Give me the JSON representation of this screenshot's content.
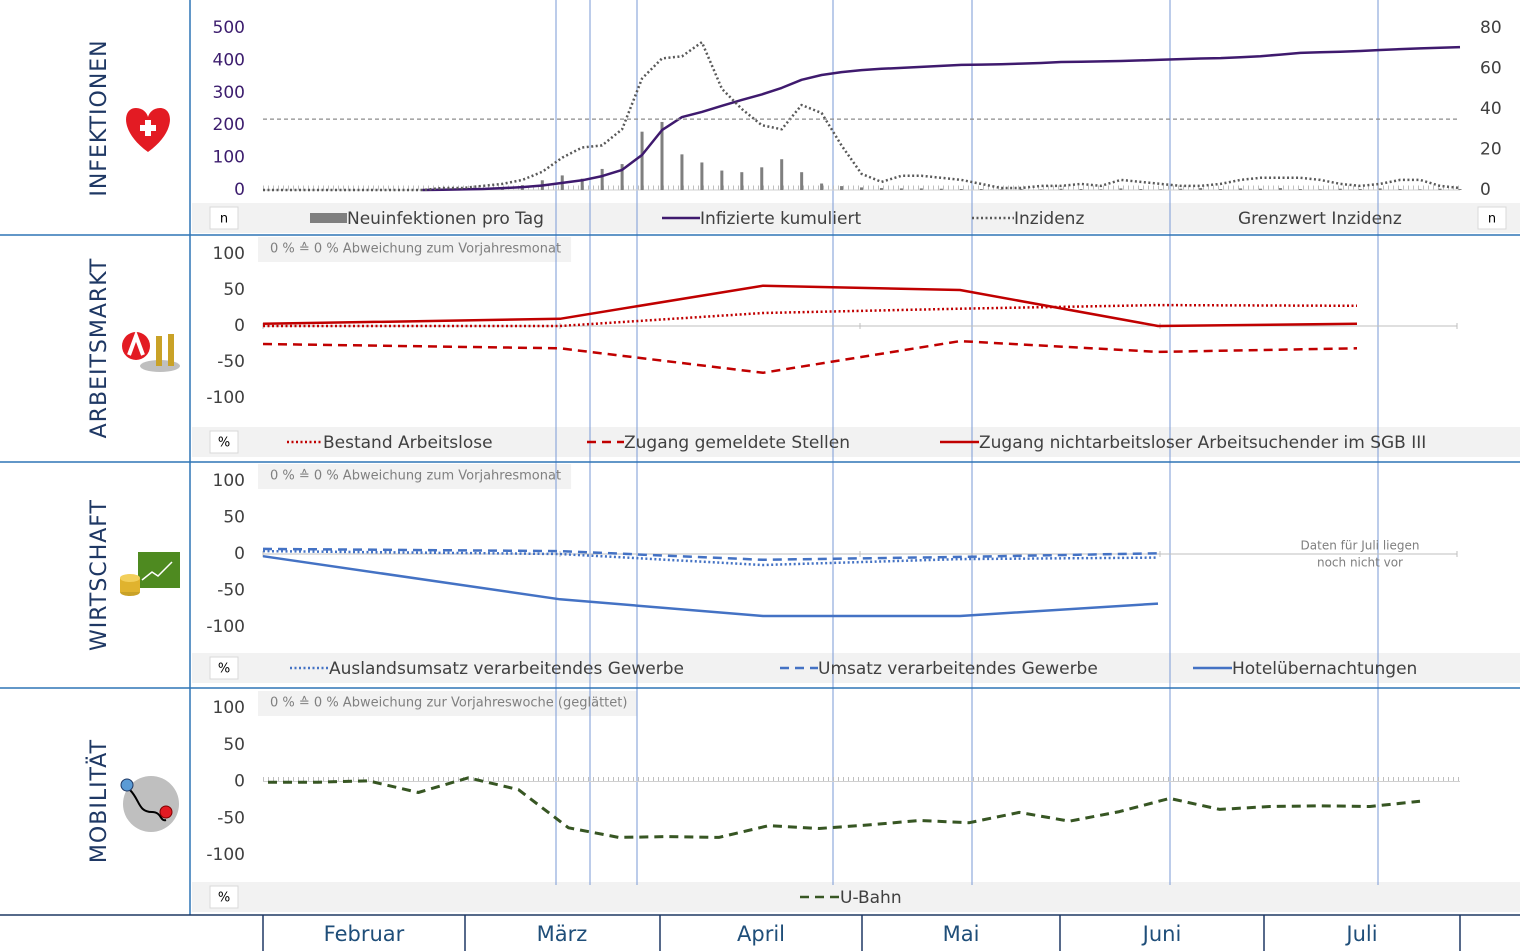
{
  "sections": [
    "INFEKTIONEN",
    "ARBEITSMARKT",
    "WIRTSCHAFT",
    "MOBILITÄT"
  ],
  "months": [
    "Februar",
    "März",
    "April",
    "Mai",
    "Juni",
    "Juli"
  ],
  "chart_data": [
    {
      "type": "combo",
      "unit": "n",
      "y2unit": "n",
      "ylim": [
        0,
        500
      ],
      "yticks": [
        0,
        100,
        200,
        300,
        400,
        500
      ],
      "y2lim": [
        0,
        80
      ],
      "y2ticks": [
        0,
        20,
        40,
        60,
        80
      ],
      "series": [
        {
          "name": "Neuinfektionen pro Tag",
          "type": "bar",
          "color": "#7f7f7f",
          "values": [
            0,
            0,
            0,
            0,
            0,
            0,
            0,
            0,
            1,
            1,
            2,
            3,
            5,
            15,
            30,
            45,
            35,
            65,
            80,
            180,
            210,
            110,
            85,
            60,
            55,
            70,
            95,
            55,
            20,
            12,
            8,
            6,
            5,
            5,
            4,
            3,
            3,
            2,
            3,
            2,
            4,
            3,
            2,
            5,
            3,
            2,
            4,
            6,
            3,
            5,
            4,
            6,
            3,
            2,
            4,
            3,
            5,
            3,
            2,
            4,
            3
          ]
        },
        {
          "name": "Infizierte kumuliert",
          "type": "line",
          "dash": "solid",
          "color": "#3f1a6e",
          "values": [
            null,
            null,
            null,
            null,
            null,
            null,
            null,
            null,
            0,
            1,
            2,
            3,
            6,
            9,
            14,
            22,
            30,
            43,
            62,
            108,
            185,
            225,
            241,
            260,
            278,
            295,
            315,
            340,
            355,
            364,
            370,
            374,
            377,
            380,
            383,
            386,
            387,
            388,
            390,
            392,
            395,
            396,
            397,
            398,
            400,
            402,
            404,
            406,
            407,
            410,
            413,
            418,
            423,
            425,
            427,
            429,
            432,
            435,
            437,
            439,
            441
          ]
        },
        {
          "name": "Inzidenz",
          "type": "line",
          "dash": "dotted",
          "color": "#595959",
          "axis": "y2",
          "values": [
            0,
            0,
            0,
            0,
            0,
            0,
            0,
            0,
            0,
            1,
            1,
            2,
            3,
            5,
            9,
            16,
            21,
            22,
            30,
            55,
            65,
            66,
            73,
            50,
            40,
            32,
            30,
            42,
            38,
            22,
            8,
            4,
            7,
            7,
            6,
            5,
            3,
            1,
            1,
            2,
            2,
            3,
            2,
            5,
            4,
            3,
            2,
            2,
            3,
            5,
            6,
            6,
            6,
            5,
            3,
            2,
            3,
            5,
            5,
            2,
            1
          ]
        },
        {
          "name": "Grenzwert Inzidenz",
          "type": "hline",
          "dash": "dashed",
          "color": "#8c8c8c",
          "axis": "y2",
          "value": 35
        }
      ]
    },
    {
      "type": "line",
      "unit": "%",
      "note": "0 % ≙ 0 % Abweichung zum Vorjahresmonat",
      "ylim": [
        -100,
        100
      ],
      "yticks": [
        100,
        50,
        0,
        -50,
        -100
      ],
      "series": [
        {
          "name": "Bestand Arbeitslose",
          "type": "line",
          "dash": "dotted",
          "color": "#c00000",
          "values": [
            0,
            0,
            18,
            24,
            29,
            28
          ]
        },
        {
          "name": "Zugang gemeldete Stellen",
          "type": "line",
          "dash": "dashed",
          "color": "#c00000",
          "values": [
            -25,
            -31,
            -65,
            -21,
            -36,
            -31
          ]
        },
        {
          "name": "Zugang nichtarbeitsloser Arbeitsuchender im SGB III",
          "type": "line",
          "dash": "solid",
          "color": "#c00000",
          "values": [
            3,
            10,
            56,
            50,
            0,
            3
          ]
        }
      ]
    },
    {
      "type": "line",
      "unit": "%",
      "note": "0 % ≙ 0 % Abweichung zum Vorjahresmonat",
      "annotation": [
        "Daten für Juli liegen",
        "noch nicht vor"
      ],
      "ylim": [
        -100,
        100
      ],
      "yticks": [
        100,
        50,
        0,
        -50,
        -100
      ],
      "series": [
        {
          "name": "Auslandsumsatz verarbeitendes Gewerbe",
          "type": "line",
          "dash": "dotted",
          "color": "#4472c4",
          "values": [
            4,
            0,
            -15,
            -7,
            -5,
            null
          ]
        },
        {
          "name": "Umsatz verarbeitendes Gewerbe",
          "type": "line",
          "dash": "dashed",
          "color": "#4472c4",
          "values": [
            7,
            4,
            -8,
            -4,
            1,
            null
          ]
        },
        {
          "name": "Hotelübernachtungen",
          "type": "line",
          "dash": "solid",
          "color": "#4472c4",
          "values": [
            -3,
            -62,
            -85,
            -85,
            -68,
            null
          ]
        }
      ]
    },
    {
      "type": "line",
      "unit": "%",
      "note": "0 % ≙ 0 % Abweichung zur Vorjahreswoche (geglättet)",
      "ylim": [
        -100,
        100
      ],
      "yticks": [
        100,
        50,
        0,
        -50,
        -100
      ],
      "series": [
        {
          "name": "U-Bahn",
          "type": "line",
          "dash": "dashed",
          "color": "#375623",
          "values": [
            -1,
            -1,
            1,
            -15,
            5,
            -11,
            -63,
            -76,
            -75,
            -76,
            -60,
            -64,
            -59,
            -53,
            -56,
            -42,
            -54,
            -41,
            -23,
            -38,
            -34,
            -33,
            -34,
            -27
          ]
        }
      ]
    }
  ]
}
